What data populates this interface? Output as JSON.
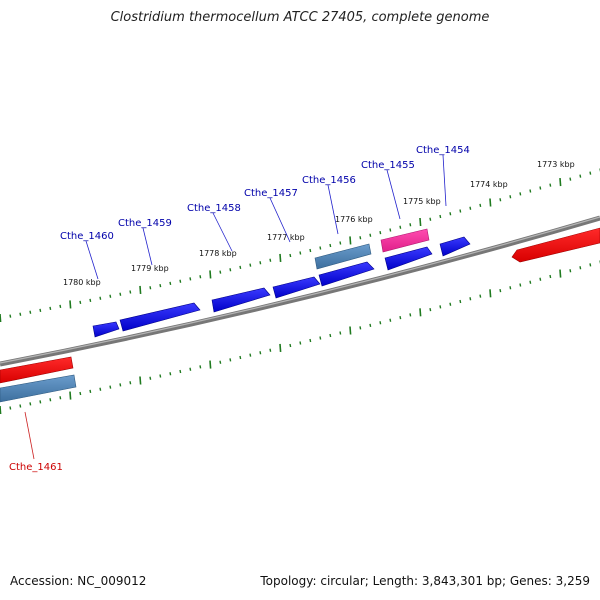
{
  "title": "Clostridium thermocellum ATCC 27405, complete genome",
  "footer": {
    "accession": "Accession: NC_009012",
    "summary": "Topology: circular; Length: 3,843,301 bp; Genes: 3,259"
  },
  "colors": {
    "backbone": "#8a8a8a",
    "ticks": "#1f7a1f",
    "forward_gene": "#0a0ae6",
    "reverse_gene": "#ee1111",
    "rna_gene": "#4a7fb0",
    "highlight_gene": "#ee2a9a",
    "forward_label": "#0000aa",
    "reverse_label": "#cc0000"
  },
  "scale_labels": [
    "1780 kbp",
    "1779 kbp",
    "1778 kbp",
    "1777 kbp",
    "1776 kbp",
    "1775 kbp",
    "1774 kbp",
    "1773 kbp"
  ],
  "gene_labels": [
    {
      "name": "Cthe_1460",
      "strand": "forward"
    },
    {
      "name": "Cthe_1459",
      "strand": "forward"
    },
    {
      "name": "Cthe_1458",
      "strand": "forward"
    },
    {
      "name": "Cthe_1457",
      "strand": "forward"
    },
    {
      "name": "Cthe_1456",
      "strand": "forward"
    },
    {
      "name": "Cthe_1455",
      "strand": "forward"
    },
    {
      "name": "Cthe_1454",
      "strand": "forward"
    },
    {
      "name": "Cthe_1461",
      "strand": "reverse"
    }
  ]
}
